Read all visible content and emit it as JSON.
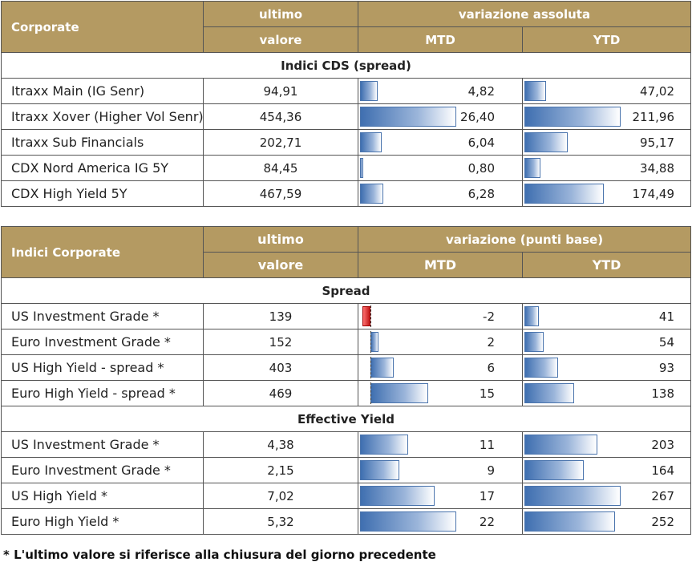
{
  "table1": {
    "header": {
      "col1": "Corporate",
      "col2_line1": "ultimo",
      "col2_line2": "valore",
      "group": "variazione assoluta",
      "mtd": "MTD",
      "ytd": "YTD"
    },
    "sections": [
      {
        "title": "Indici CDS (spread)",
        "rows": [
          {
            "name": "Itraxx Main (IG Senr)",
            "value": "94,91",
            "mtd": "4,82",
            "ytd": "47,02",
            "mtd_num": 4.82,
            "ytd_num": 47.02
          },
          {
            "name": "Itraxx Xover (Higher Vol Senr)",
            "value": "454,36",
            "mtd": "26,40",
            "ytd": "211,96",
            "mtd_num": 26.4,
            "ytd_num": 211.96
          },
          {
            "name": "Itraxx Sub Financials",
            "value": "202,71",
            "mtd": "6,04",
            "ytd": "95,17",
            "mtd_num": 6.04,
            "ytd_num": 95.17
          },
          {
            "name": "CDX Nord America IG 5Y",
            "value": "84,45",
            "mtd": "0,80",
            "ytd": "34,88",
            "mtd_num": 0.8,
            "ytd_num": 34.88
          },
          {
            "name": "CDX High Yield 5Y",
            "value": "467,59",
            "mtd": "6,28",
            "ytd": "174,49",
            "mtd_num": 6.28,
            "ytd_num": 174.49
          }
        ]
      }
    ]
  },
  "table2": {
    "header": {
      "col1": "Indici Corporate",
      "col2_line1": "ultimo",
      "col2_line2": "valore",
      "group": "variazione (punti base)",
      "mtd": "MTD",
      "ytd": "YTD"
    },
    "sections": [
      {
        "title": "Spread",
        "rows": [
          {
            "name": "US Investment Grade *",
            "value": "139",
            "mtd": "-2",
            "ytd": "41",
            "mtd_num": -2,
            "ytd_num": 41
          },
          {
            "name": "Euro Investment Grade *",
            "value": "152",
            "mtd": "2",
            "ytd": "54",
            "mtd_num": 2,
            "ytd_num": 54
          },
          {
            "name": "US High Yield  - spread *",
            "value": "403",
            "mtd": "6",
            "ytd": "93",
            "mtd_num": 6,
            "ytd_num": 93
          },
          {
            "name": "Euro High Yield  - spread *",
            "value": "469",
            "mtd": "15",
            "ytd": "138",
            "mtd_num": 15,
            "ytd_num": 138
          }
        ]
      },
      {
        "title": "Effective Yield",
        "rows": [
          {
            "name": "US Investment Grade *",
            "value": "4,38",
            "mtd": "11",
            "ytd": "203",
            "mtd_num": 11,
            "ytd_num": 203
          },
          {
            "name": "Euro Investment Grade *",
            "value": "2,15",
            "mtd": "9",
            "ytd": "164",
            "mtd_num": 9,
            "ytd_num": 164
          },
          {
            "name": "US High Yield *",
            "value": "7,02",
            "mtd": "17",
            "ytd": "267",
            "mtd_num": 17,
            "ytd_num": 267
          },
          {
            "name": "Euro High Yield *",
            "value": "5,32",
            "mtd": "22",
            "ytd": "252",
            "mtd_num": 22,
            "ytd_num": 252
          }
        ]
      }
    ]
  },
  "footnote": "* L'ultimo valore si riferisce alla chiusura del giorno precedente",
  "colors": {
    "header_bg": "#b49a62",
    "bar_blue": "#3f6fb0",
    "bar_red": "#c01818"
  }
}
